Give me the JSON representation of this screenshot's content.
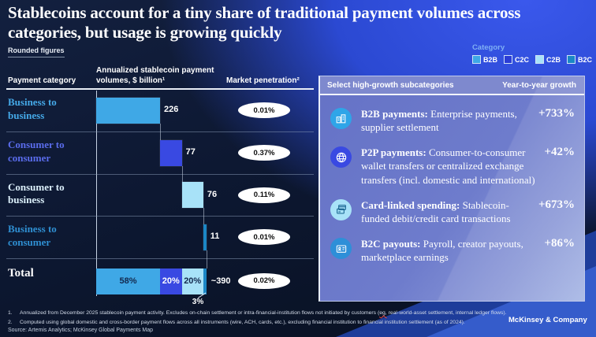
{
  "slide": {
    "title": "Stablecoins account for a tiny share of traditional payment volumes across categories, but usage is growing quickly",
    "note": "Rounded figures",
    "brand": "McKinsey & Company"
  },
  "legend": {
    "title": "Category",
    "items": [
      {
        "label": "B2B",
        "color": "#3FA8E6"
      },
      {
        "label": "C2C",
        "color": "#2B3DD6"
      },
      {
        "label": "C2B",
        "color": "#A8E2F8"
      },
      {
        "label": "B2C",
        "color": "#1B87C6"
      }
    ]
  },
  "columns": {
    "category": "Payment category",
    "volume": "Annualized stablecoin payment volumes, $ billion¹",
    "penetration": "Market penetration²"
  },
  "chart_data": {
    "type": "bar",
    "subtype": "waterfall",
    "unit": "$ billion, annualized",
    "rows": [
      {
        "label": "Business to business",
        "category": "B2B",
        "value": 226,
        "value_label": "226",
        "penetration": "0.01%",
        "bar_color": "#3FA8E6",
        "label_color": "#45A9E8"
      },
      {
        "label": "Consumer to consumer",
        "category": "C2C",
        "value": 77,
        "value_label": "77",
        "penetration": "0.37%",
        "bar_color": "#3949E2",
        "label_color": "#5A6CEC"
      },
      {
        "label": "Consumer to business",
        "category": "C2B",
        "value": 76,
        "value_label": "76",
        "penetration": "0.11%",
        "bar_color": "#A8E2F8",
        "label_color": "#DCF0FB"
      },
      {
        "label": "Business to consumer",
        "category": "B2C",
        "value": 11,
        "value_label": "11",
        "penetration": "0.01%",
        "bar_color": "#1B87C6",
        "label_color": "#2F8FD2"
      }
    ],
    "total": {
      "label": "Total",
      "value_label": "~390",
      "penetration": "0.02%",
      "segments": [
        {
          "share": "58%",
          "value": 226,
          "color": "#3FA8E6",
          "text_color": "#13294E",
          "label_inside": true
        },
        {
          "share": "20%",
          "value": 77,
          "color": "#3949E2",
          "text_color": "#FFFFFF",
          "label_inside": true
        },
        {
          "share": "20%",
          "value": 76,
          "color": "#A8E2F8",
          "text_color": "#13294E",
          "label_inside": true
        },
        {
          "share": "3%",
          "value": 11,
          "color": "#1B87C6",
          "text_color": "#FFFFFF",
          "label_inside": false
        }
      ]
    }
  },
  "panel": {
    "header_left": "Select high-growth subcategories",
    "header_right": "Year-to-year growth",
    "items": [
      {
        "icon": "buildings-icon",
        "icon_bg": "#2FA5E8",
        "icon_fg": "#FFFFFF",
        "lead": "B2B payments:",
        "desc": "Enterprise payments, supplier settlement",
        "growth": "+733%"
      },
      {
        "icon": "globe-icon",
        "icon_bg": "#3949E2",
        "icon_fg": "#FFFFFF",
        "lead": "P2P payments:",
        "desc": "Consumer-to-consumer wallet transfers or centralized exchange transfers (incl. domestic and international)",
        "growth": "+42%"
      },
      {
        "icon": "card-icon",
        "icon_bg": "#A8E2F8",
        "icon_fg": "#15628E",
        "lead": "Card-linked spending:",
        "desc": "Stablecoin-funded debit/credit card transactions",
        "growth": "+673%"
      },
      {
        "icon": "id-badge-icon",
        "icon_bg": "#2E8FD8",
        "icon_fg": "#FFFFFF",
        "lead": "B2C payouts:",
        "desc": "Payroll, creator payouts, marketplace earnings",
        "growth": "+86%"
      }
    ]
  },
  "footnotes": {
    "items": [
      {
        "num": "1.",
        "text": "Annualized from December 2025 stablecoin payment activity. Excludes on-chain settlement or intra-financial-institution flows not initiated by customers (eg, real-world-asset settlement, internal ledger flows).",
        "squiggle": "eg,"
      },
      {
        "num": "2.",
        "text": "Computed using global domestic and cross-border payment flows across all instruments (wire, ACH, cards, etc.), excluding financial institution to financial institution settlement (as of 2024)."
      }
    ],
    "source": "Source: Artemis Analytics; McKinsey Global Payments Map"
  }
}
